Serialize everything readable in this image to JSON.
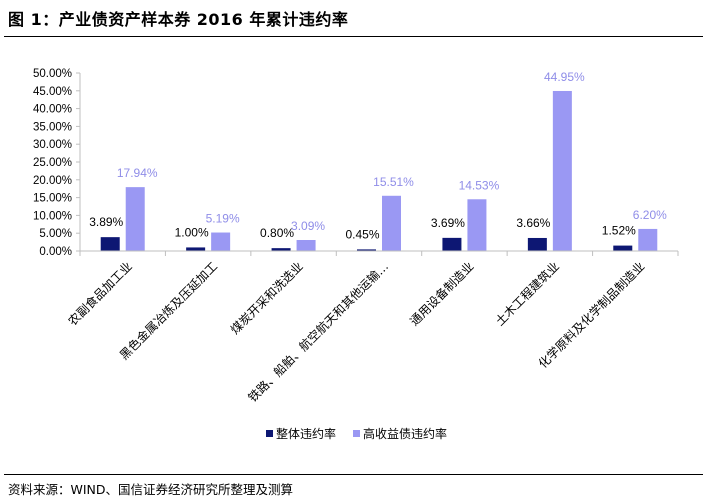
{
  "figure": {
    "title": "图 1：产业债资产样本券 2016 年累计违约率",
    "source": "资料来源：WIND、国信证券经济研究所整理及测算"
  },
  "colors": {
    "series1": "#0d1773",
    "series2": "#9a98f3",
    "label2": "#8f8de8",
    "axis": "#bfbfbf",
    "text": "#000000"
  },
  "chart_data": {
    "type": "bar",
    "categories": [
      "农副食品加工业",
      "黑色金属冶炼及压延加工",
      "煤炭开采和洗选业",
      "铁路、船舶、航空航天和其他运输…",
      "通用设备制造业",
      "土木工程建筑业",
      "化学原料及化学制品制造业"
    ],
    "series": [
      {
        "name": "整体违约率",
        "values": [
          3.89,
          1.0,
          0.8,
          0.45,
          3.69,
          3.66,
          1.52
        ],
        "labels": [
          "3.89%",
          "1.00%",
          "0.80%",
          "0.45%",
          "3.69%",
          "3.66%",
          "1.52%"
        ]
      },
      {
        "name": "高收益债违约率",
        "values": [
          17.94,
          5.19,
          3.09,
          15.51,
          14.53,
          44.95,
          6.2
        ],
        "labels": [
          "17.94%",
          "5.19%",
          "3.09%",
          "15.51%",
          "14.53%",
          "44.95%",
          "6.20%"
        ]
      }
    ],
    "ylim": [
      0,
      50
    ],
    "yticks": [
      0,
      5,
      10,
      15,
      20,
      25,
      30,
      35,
      40,
      45,
      50
    ],
    "ytick_labels": [
      "0.00%",
      "5.00%",
      "10.00%",
      "15.00%",
      "20.00%",
      "25.00%",
      "30.00%",
      "35.00%",
      "40.00%",
      "45.00%",
      "50.00%"
    ],
    "grid": false,
    "legend": "bottom"
  }
}
